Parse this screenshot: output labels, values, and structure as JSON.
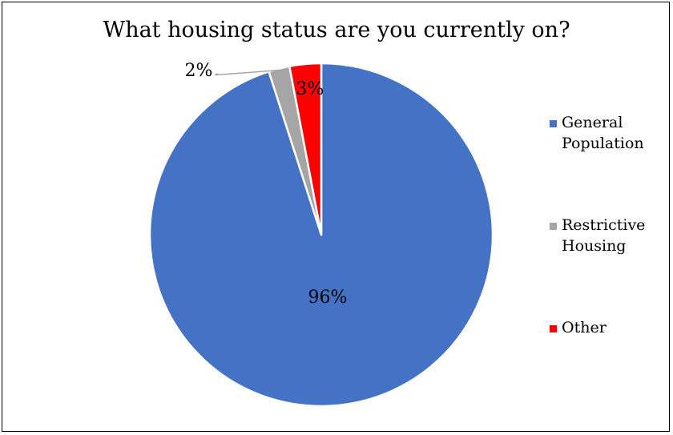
{
  "chart_data": {
    "type": "pie",
    "title": "What housing status are you currently on?",
    "categories": [
      "General Population",
      "Restrictive Housing",
      "Other"
    ],
    "values": [
      96,
      2,
      3
    ],
    "data_labels": [
      "96%",
      "2%",
      "3%"
    ],
    "colors": [
      "#4472C4",
      "#A5A5A5",
      "#FF0000"
    ],
    "legend_labels": [
      "General\nPopulation",
      "Restrictive\nHousing",
      "Other"
    ],
    "legend_position": "right"
  }
}
